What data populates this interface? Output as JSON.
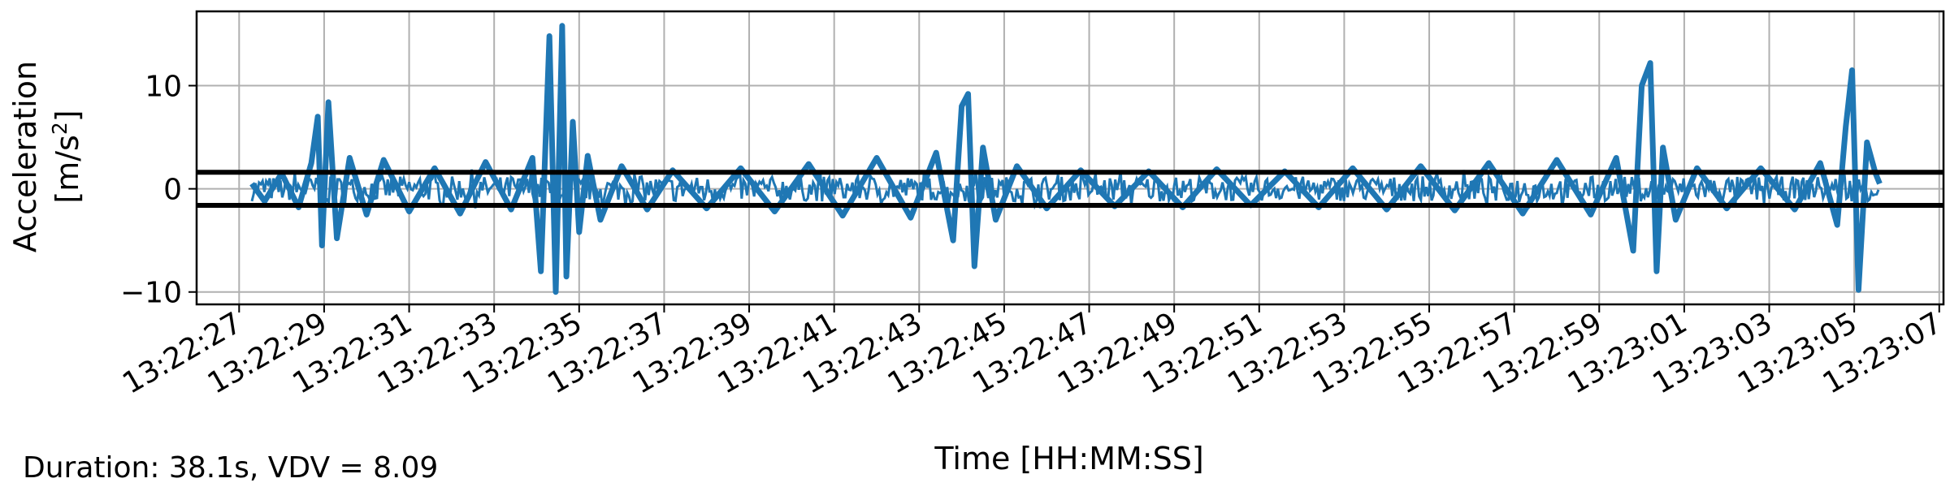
{
  "chart_data": {
    "type": "line",
    "title": "",
    "xlabel": "Time [HH:MM:SS]",
    "ylabel_line1": "Acceleration",
    "ylabel_line2_prefix": "[m/s",
    "ylabel_line2_exp": "2",
    "ylabel_line2_suffix": "]",
    "x_range": [
      "13:22:26.0",
      "13:23:07.1"
    ],
    "ylim": [
      -11.2,
      17.2
    ],
    "grid": true,
    "x_ticks": [
      "13:22:27",
      "13:22:29",
      "13:22:31",
      "13:22:33",
      "13:22:35",
      "13:22:37",
      "13:22:39",
      "13:22:41",
      "13:22:43",
      "13:22:45",
      "13:22:47",
      "13:22:49",
      "13:22:51",
      "13:22:53",
      "13:22:55",
      "13:22:57",
      "13:22:59",
      "13:23:01",
      "13:23:03",
      "13:23:05",
      "13:23:07"
    ],
    "y_ticks": [
      -10,
      0,
      10
    ],
    "y_tick_labels": [
      "−10",
      "0",
      "10"
    ],
    "series_color": "#1f77b4",
    "reference_lines": [
      1.6,
      -1.6
    ],
    "reference_line_color": "#000000",
    "series": [
      {
        "x": [
          "13:22:27.3",
          "13:22:27.6",
          "13:22:28.0",
          "13:22:28.4",
          "13:22:28.7",
          "13:22:28.85",
          "13:22:28.95",
          "13:22:29.1",
          "13:22:29.3",
          "13:22:29.6",
          "13:22:30.0",
          "13:22:30.4",
          "13:22:31.0",
          "13:22:31.6",
          "13:22:32.2",
          "13:22:32.8",
          "13:22:33.4",
          "13:22:33.9",
          "13:22:34.1",
          "13:22:34.3",
          "13:22:34.45",
          "13:22:34.6",
          "13:22:34.7",
          "13:22:34.85",
          "13:22:35.0",
          "13:22:35.2",
          "13:22:35.5",
          "13:22:36.0",
          "13:22:36.6",
          "13:22:37.2",
          "13:22:38.0",
          "13:22:38.8",
          "13:22:39.6",
          "13:22:40.4",
          "13:22:41.2",
          "13:22:42.0",
          "13:22:42.8",
          "13:22:43.4",
          "13:22:43.8",
          "13:22:44.0",
          "13:22:44.15",
          "13:22:44.3",
          "13:22:44.5",
          "13:22:44.8",
          "13:22:45.3",
          "13:22:46.0",
          "13:22:46.8",
          "13:22:47.6",
          "13:22:48.4",
          "13:22:49.2",
          "13:22:50.0",
          "13:22:50.8",
          "13:22:51.6",
          "13:22:52.4",
          "13:22:53.2",
          "13:22:54.0",
          "13:22:54.8",
          "13:22:55.6",
          "13:22:56.4",
          "13:22:57.2",
          "13:22:58.0",
          "13:22:58.8",
          "13:22:59.4",
          "13:22:59.8",
          "13:23:00.0",
          "13:23:00.2",
          "13:23:00.35",
          "13:23:00.5",
          "13:23:00.8",
          "13:23:01.3",
          "13:23:02.0",
          "13:23:02.8",
          "13:23:03.6",
          "13:23:04.2",
          "13:23:04.6",
          "13:23:04.8",
          "13:23:04.95",
          "13:23:05.1",
          "13:23:05.3",
          "13:23:05.5",
          "13:23:05.6"
        ],
        "y": [
          0.5,
          -1.2,
          1.5,
          -1.8,
          2.5,
          7.0,
          -5.5,
          8.4,
          -4.8,
          3.0,
          -2.5,
          2.8,
          -2.2,
          2.0,
          -2.4,
          2.6,
          -2.0,
          3.0,
          -8.0,
          14.8,
          -10.0,
          15.8,
          -8.5,
          6.5,
          -4.2,
          3.2,
          -3.0,
          2.2,
          -2.0,
          1.8,
          -1.9,
          2.0,
          -2.2,
          2.4,
          -2.6,
          3.0,
          -2.8,
          3.5,
          -5.0,
          8.0,
          9.2,
          -7.5,
          4.0,
          -3.0,
          2.2,
          -1.9,
          1.8,
          -1.7,
          1.7,
          -1.8,
          1.9,
          -1.6,
          1.7,
          -1.8,
          2.0,
          -2.0,
          2.2,
          -2.1,
          2.5,
          -2.4,
          2.8,
          -2.5,
          3.0,
          -6.0,
          10.0,
          12.2,
          -8.0,
          4.0,
          -3.0,
          2.0,
          -1.9,
          2.0,
          -2.0,
          2.5,
          -3.5,
          6.0,
          11.5,
          -9.8,
          4.5,
          1.5,
          0.5
        ]
      }
    ]
  },
  "footer": {
    "text": "Duration: 38.1s, VDV = 8.09"
  }
}
